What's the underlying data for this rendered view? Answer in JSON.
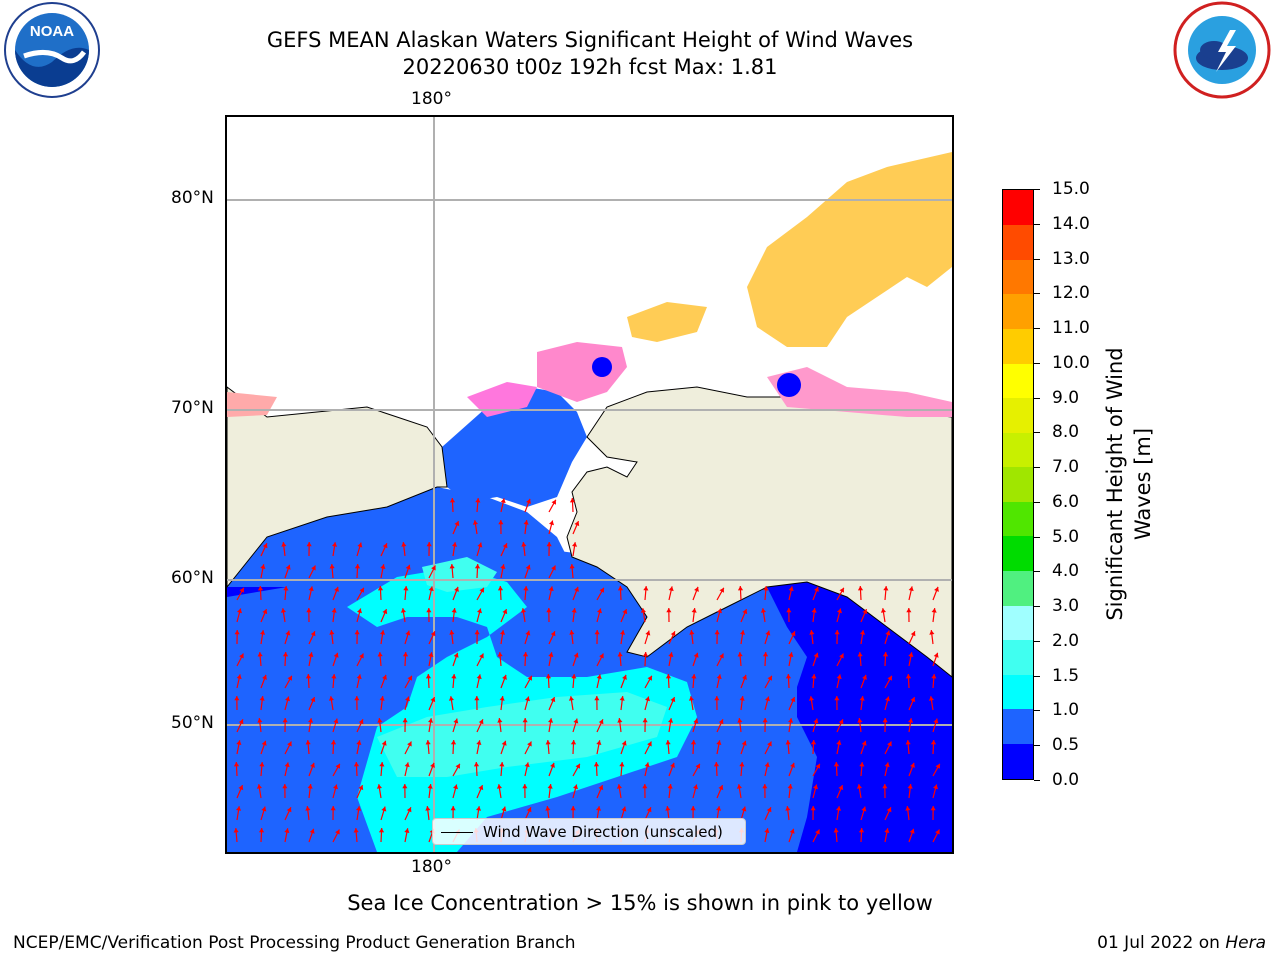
{
  "title_line1": "GEFS MEAN Alaskan Waters Significant Height of Wind Waves",
  "title_line2": "20220630 t00z 192h fcst   Max: 1.81",
  "map": {
    "lon_label_top": "180°",
    "lon_label_bottom": "180°",
    "lat_labels": [
      "80°N",
      "70°N",
      "60°N",
      "50°N"
    ],
    "legend_label": "Wind Wave Direction (unscaled)",
    "colors": {
      "land": "#efeedc",
      "coast": "#000000",
      "grid": "#b0b0b0",
      "arrow": "#ff0000"
    }
  },
  "colorbar": {
    "title": "Significant Height of Wind Waves [m]",
    "title_line1": "Significant Height of Wind",
    "title_line2": "Waves [m]",
    "tick_labels": [
      "0.0",
      "0.5",
      "1.0",
      "1.5",
      "2.0",
      "3.0",
      "4.0",
      "5.0",
      "6.0",
      "7.0",
      "8.0",
      "9.0",
      "10.0",
      "11.0",
      "12.0",
      "13.0",
      "14.0",
      "15.0"
    ],
    "segment_colors": [
      "#0000ff",
      "#1e64ff",
      "#00ffff",
      "#40fff0",
      "#a0ffff",
      "#50f080",
      "#00dc00",
      "#50e600",
      "#a0e600",
      "#c8f000",
      "#e6f000",
      "#ffff00",
      "#ffcc00",
      "#ffa000",
      "#ff7800",
      "#ff4b00",
      "#ff0000"
    ]
  },
  "caption": "Sea Ice Concentration > 15% is shown in pink to yellow",
  "footer_left": "NCEP/EMC/Verification Post Processing Product Generation Branch",
  "footer_date": "01 Jul 2022 on ",
  "footer_host": "Hera",
  "logos": {
    "noaa": "noaa-logo",
    "nws": "national-weather-service-logo"
  }
}
